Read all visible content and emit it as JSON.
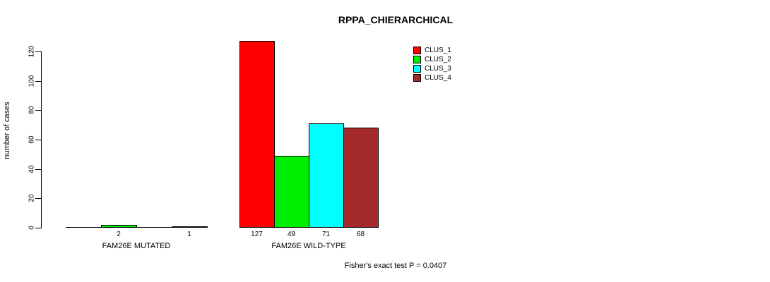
{
  "chart_data": {
    "type": "bar",
    "title": "RPPA_CHIERARCHICAL",
    "ylabel": "number of cases",
    "xlabel": "",
    "ylim": [
      0,
      120
    ],
    "yticks": [
      0,
      20,
      40,
      60,
      80,
      100,
      120
    ],
    "grid": false,
    "legend_position": "top-right",
    "series": [
      {
        "name": "CLUS_1",
        "color": "#FF0000"
      },
      {
        "name": "CLUS_2",
        "color": "#00EE00"
      },
      {
        "name": "CLUS_3",
        "color": "#00FFFF"
      },
      {
        "name": "CLUS_4",
        "color": "#A52A2A"
      }
    ],
    "groups": [
      {
        "label": "FAM26E MUTATED",
        "values": [
          0,
          2,
          0,
          1
        ],
        "bar_labels": [
          "",
          "2",
          "",
          "1"
        ]
      },
      {
        "label": "FAM26E WILD-TYPE",
        "values": [
          127,
          49,
          71,
          68
        ],
        "bar_labels": [
          "127",
          "49",
          "71",
          "68"
        ]
      }
    ],
    "footnote": "Fisher's exact test P = 0.0407"
  }
}
